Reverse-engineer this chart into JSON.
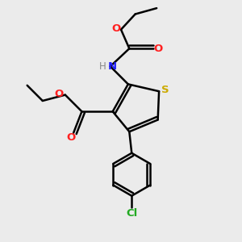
{
  "bg_color": "#ebebeb",
  "atom_colors": {
    "C": "#000000",
    "H": "#888888",
    "N": "#2020ff",
    "O": "#ff2020",
    "S": "#ccaa00",
    "Cl": "#22aa22"
  },
  "figsize": [
    3.0,
    3.0
  ],
  "dpi": 100,
  "xlim": [
    0,
    10
  ],
  "ylim": [
    0,
    10
  ]
}
